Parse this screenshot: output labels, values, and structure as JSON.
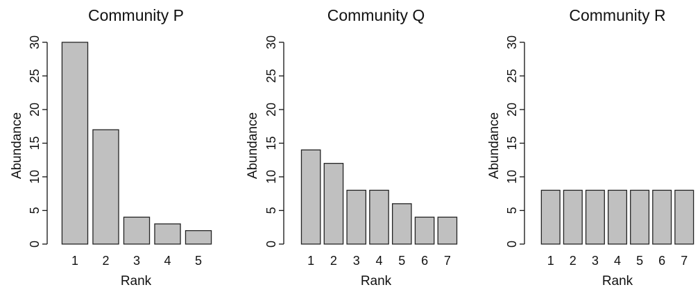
{
  "chart_data": [
    {
      "type": "bar",
      "title": "Community P",
      "xlabel": "Rank",
      "ylabel": "Abundance",
      "categories": [
        "1",
        "2",
        "3",
        "4",
        "5"
      ],
      "values": [
        30,
        17,
        4,
        3,
        2
      ],
      "ylim": [
        0,
        30
      ],
      "yticks": [
        "0",
        "5",
        "10",
        "15",
        "20",
        "25",
        "30"
      ],
      "bar_color": "#c0c0c0",
      "grid": false
    },
    {
      "type": "bar",
      "title": "Community Q",
      "xlabel": "Rank",
      "ylabel": "Abundance",
      "categories": [
        "1",
        "2",
        "3",
        "4",
        "5",
        "6",
        "7"
      ],
      "values": [
        14,
        12,
        8,
        8,
        6,
        4,
        4
      ],
      "ylim": [
        0,
        30
      ],
      "yticks": [
        "0",
        "5",
        "10",
        "15",
        "20",
        "25",
        "30"
      ],
      "bar_color": "#c0c0c0",
      "grid": false
    },
    {
      "type": "bar",
      "title": "Community R",
      "xlabel": "Rank",
      "ylabel": "Abundance",
      "categories": [
        "1",
        "2",
        "3",
        "4",
        "5",
        "6",
        "7"
      ],
      "values": [
        8,
        8,
        8,
        8,
        8,
        8,
        8
      ],
      "ylim": [
        0,
        30
      ],
      "yticks": [
        "0",
        "5",
        "10",
        "15",
        "20",
        "25",
        "30"
      ],
      "bar_color": "#c0c0c0",
      "grid": false
    }
  ]
}
